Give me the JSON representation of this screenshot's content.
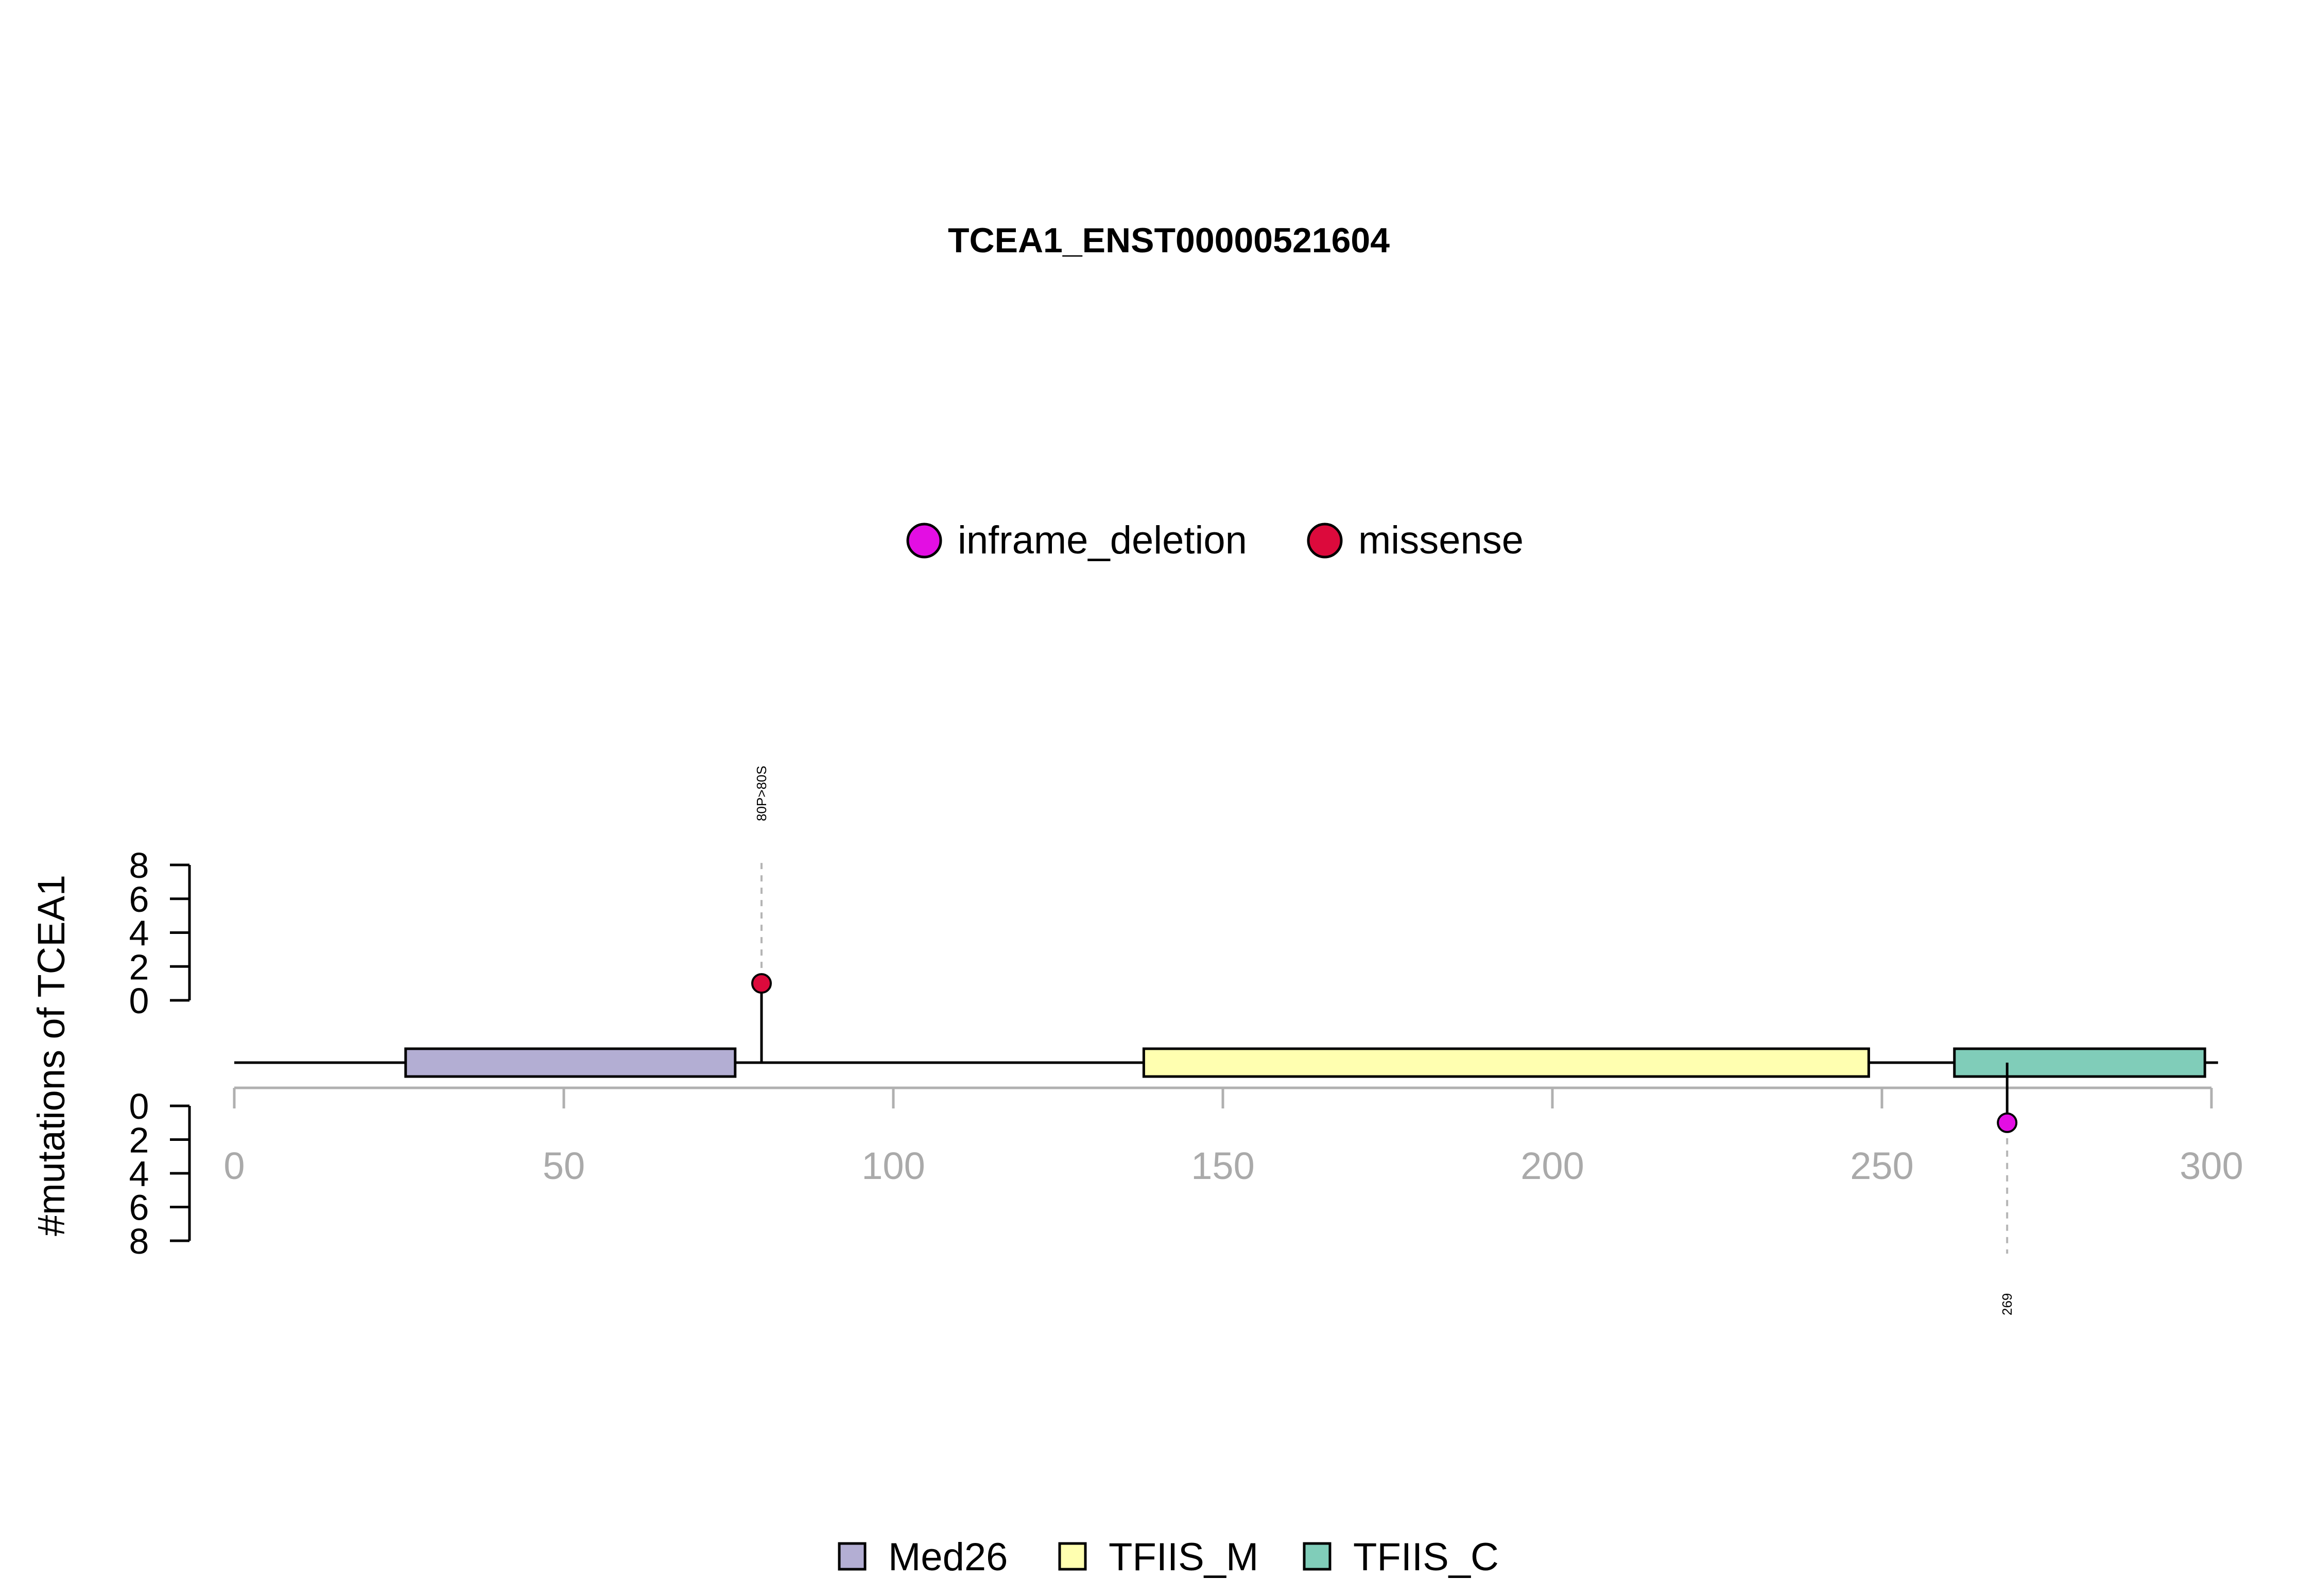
{
  "chart_data": {
    "type": "lollipop",
    "title": "TCEA1_ENST00000521604",
    "ylabel": "#mutations of TCEA1",
    "xlim": [
      0,
      300
    ],
    "x_ticks": [
      0,
      50,
      100,
      150,
      200,
      250,
      300
    ],
    "protein_length": 301,
    "y_ticks_top": [
      0,
      2,
      4,
      6,
      8
    ],
    "y_ticks_bottom": [
      0,
      2,
      4,
      6,
      8
    ],
    "ylim": [
      0,
      8
    ],
    "mutation_legend": [
      {
        "name": "inframe_deletion",
        "color": "#e30ee3"
      },
      {
        "name": "missense",
        "color": "#dc0a3c"
      }
    ],
    "domain_legend": [
      {
        "name": "Med26",
        "color": "#b3aed3"
      },
      {
        "name": "TFIIS_M",
        "color": "#ffffb0"
      },
      {
        "name": "TFIIS_C",
        "color": "#80cdb9"
      }
    ],
    "domains": [
      {
        "name": "Med26",
        "start": 26,
        "end": 76,
        "color": "#b3aed3"
      },
      {
        "name": "TFIIS_M",
        "start": 138,
        "end": 248,
        "color": "#ffffb0"
      },
      {
        "name": "TFIIS_C",
        "start": 261,
        "end": 299,
        "color": "#80cdb9"
      }
    ],
    "mutations": [
      {
        "position": 80,
        "count": 1,
        "type": "missense",
        "side": "top",
        "label": "80P>80S",
        "color": "#dc0a3c"
      },
      {
        "position": 269,
        "count": 1,
        "type": "inframe_deletion",
        "side": "bottom",
        "label": "269",
        "color": "#e30ee3"
      }
    ]
  }
}
